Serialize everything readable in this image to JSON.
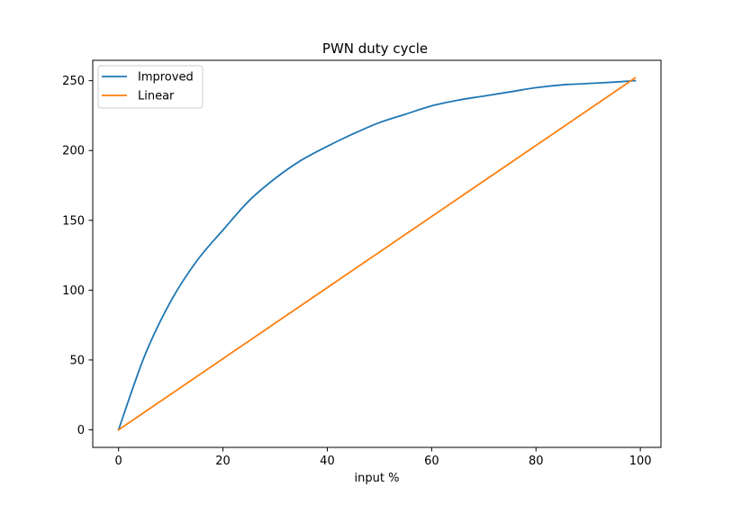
{
  "chart_data": {
    "type": "line",
    "title": "PWN duty cycle",
    "xlabel": "input %",
    "ylabel": "",
    "xlim": [
      -4.95,
      103.95
    ],
    "ylim": [
      -12.6,
      264.6
    ],
    "xticks": [
      0,
      20,
      40,
      60,
      80,
      100
    ],
    "yticks": [
      0,
      50,
      100,
      150,
      200,
      250
    ],
    "grid": false,
    "legend_position": "upper left",
    "series": [
      {
        "name": "Improved",
        "color": "#1f77b4",
        "x": [
          0,
          5,
          10,
          15,
          20,
          25,
          30,
          35,
          40,
          45,
          50,
          55,
          60,
          65,
          70,
          75,
          80,
          85,
          90,
          95,
          99
        ],
        "y": [
          0,
          53,
          92,
          121,
          143,
          164,
          180,
          193,
          203,
          212,
          220,
          226,
          232,
          236,
          239,
          242,
          245,
          247,
          248,
          249,
          250
        ]
      },
      {
        "name": "Linear",
        "color": "#ff7f0e",
        "x": [
          0,
          99
        ],
        "y": [
          0,
          252
        ]
      }
    ]
  }
}
